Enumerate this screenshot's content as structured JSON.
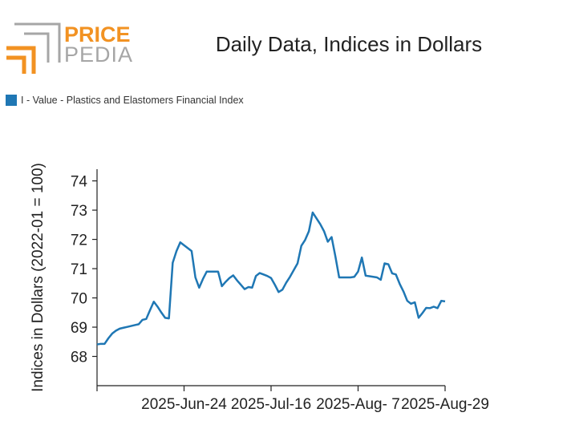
{
  "header": {
    "logo_top": "PRICE",
    "logo_bottom": "PEDIA",
    "title": "Daily Data, Indices in Dollars"
  },
  "colors": {
    "series": "#1f77b4",
    "logo_orange": "#f29222",
    "logo_gray": "#a6a6a6",
    "axis": "#222222"
  },
  "chart_data": {
    "type": "line",
    "title": "Daily Data, Indices in Dollars",
    "ylabel": "Indices in Dollars (2022-01 = 100)",
    "xlabel": "",
    "ylim": [
      67.0,
      74.4
    ],
    "yticks": [
      68,
      69,
      70,
      71,
      72,
      73,
      74
    ],
    "xticks": [
      "",
      "2025-Jun-24",
      "2025-Jul-16",
      "2025-Aug- 7",
      "2025-Aug-29"
    ],
    "legend_position": "top-left",
    "grid": false,
    "series": [
      {
        "name": "I - Value - Plastics and Elastomers Financial Index",
        "values": [
          68.41,
          68.43,
          68.43,
          68.62,
          68.78,
          68.88,
          68.95,
          68.98,
          69.01,
          69.04,
          69.07,
          69.1,
          69.25,
          69.28,
          69.58,
          69.87,
          69.7,
          69.5,
          69.32,
          69.3,
          71.2,
          71.6,
          71.9,
          71.8,
          71.7,
          71.6,
          70.7,
          70.35,
          70.65,
          70.9,
          70.9,
          70.9,
          70.9,
          70.4,
          70.55,
          70.68,
          70.77,
          70.6,
          70.45,
          70.3,
          70.37,
          70.35,
          70.75,
          70.85,
          70.8,
          70.75,
          70.68,
          70.45,
          70.2,
          70.28,
          70.52,
          70.72,
          70.95,
          71.18,
          71.78,
          71.98,
          72.28,
          72.92,
          72.72,
          72.52,
          72.28,
          71.92,
          72.08,
          71.42,
          70.7,
          70.7,
          70.7,
          70.7,
          70.72,
          70.9,
          71.38,
          70.76,
          70.74,
          70.72,
          70.7,
          70.62,
          71.18,
          71.15,
          70.84,
          70.8,
          70.48,
          70.22,
          69.9,
          69.8,
          69.85,
          69.32,
          69.48,
          69.66,
          69.65,
          69.7,
          69.65,
          69.9,
          69.88
        ]
      }
    ]
  }
}
